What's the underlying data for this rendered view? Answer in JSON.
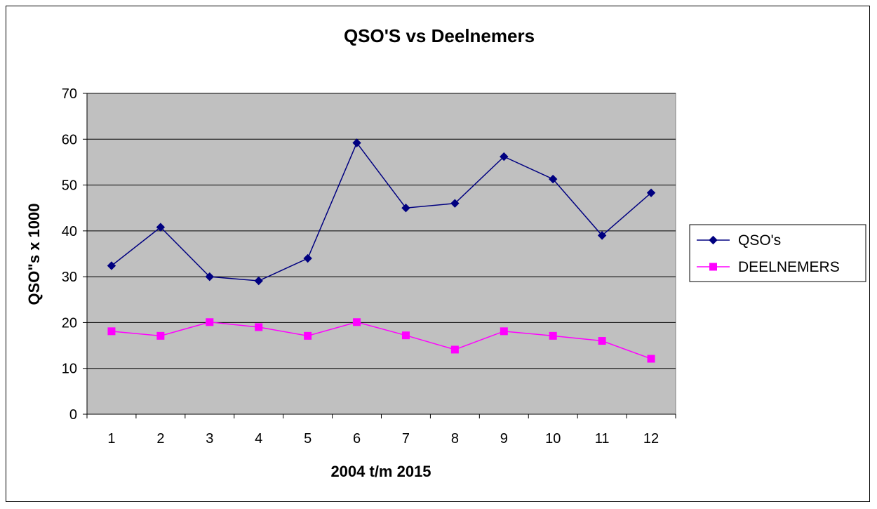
{
  "chart_data": {
    "type": "line",
    "title": "QSO'S vs Deelnemers",
    "xlabel": "2004 t/m 2015",
    "ylabel": "QSO\"s x 1000",
    "categories": [
      "1",
      "2",
      "3",
      "4",
      "5",
      "6",
      "7",
      "8",
      "9",
      "10",
      "11",
      "12"
    ],
    "ylim": [
      0,
      70
    ],
    "yticks": [
      0,
      10,
      20,
      30,
      40,
      50,
      60,
      70
    ],
    "grid": true,
    "legend_position": "right",
    "series": [
      {
        "name": "QSO's",
        "color": "#000080",
        "marker": "diamond",
        "values": [
          32.4,
          40.8,
          30.0,
          29.1,
          34.0,
          59.2,
          45.0,
          46.0,
          56.2,
          51.3,
          39.0,
          48.3
        ]
      },
      {
        "name": "DEELNEMERS",
        "color": "#ff00ff",
        "marker": "square",
        "values": [
          18.1,
          17.1,
          20.1,
          19.0,
          17.1,
          20.1,
          17.2,
          14.1,
          18.1,
          17.1,
          16.0,
          12.1
        ]
      }
    ],
    "plot_background": "#c0c0c0"
  }
}
